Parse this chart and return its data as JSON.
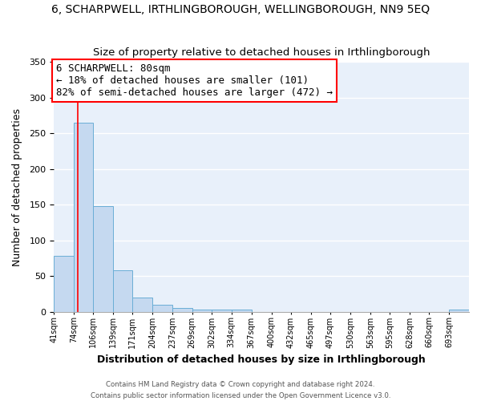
{
  "title": "6, SCHARPWELL, IRTHLINGBOROUGH, WELLINGBOROUGH, NN9 5EQ",
  "subtitle": "Size of property relative to detached houses in Irthlingborough",
  "xlabel": "Distribution of detached houses by size in Irthlingborough",
  "ylabel": "Number of detached properties",
  "bar_color": "#c5d9f0",
  "bar_edge_color": "#6aaed6",
  "bar_heights": [
    78,
    265,
    148,
    58,
    20,
    10,
    5,
    3,
    3,
    3,
    0,
    0,
    0,
    0,
    0,
    0,
    0,
    0,
    0,
    0,
    3
  ],
  "bar_positions_start": [
    41,
    74,
    106,
    139,
    171,
    204,
    237,
    269,
    302,
    334,
    367,
    400,
    432,
    465,
    497,
    530,
    563,
    595,
    628,
    660,
    693
  ],
  "ylim": [
    0,
    350
  ],
  "yticks": [
    0,
    50,
    100,
    150,
    200,
    250,
    300,
    350
  ],
  "red_line_x": 80,
  "annotation_text": "6 SCHARPWELL: 80sqm\n← 18% of detached houses are smaller (101)\n82% of semi-detached houses are larger (472) →",
  "annotation_box_color": "white",
  "annotation_box_edge_color": "red",
  "footer_line1": "Contains HM Land Registry data © Crown copyright and database right 2024.",
  "footer_line2": "Contains public sector information licensed under the Open Government Licence v3.0.",
  "background_color": "#ffffff",
  "grid_color": "#dde8f5",
  "title_fontsize": 10,
  "subtitle_fontsize": 9.5,
  "xlabel_fontsize": 9,
  "ylabel_fontsize": 9,
  "annotation_fontsize": 9
}
